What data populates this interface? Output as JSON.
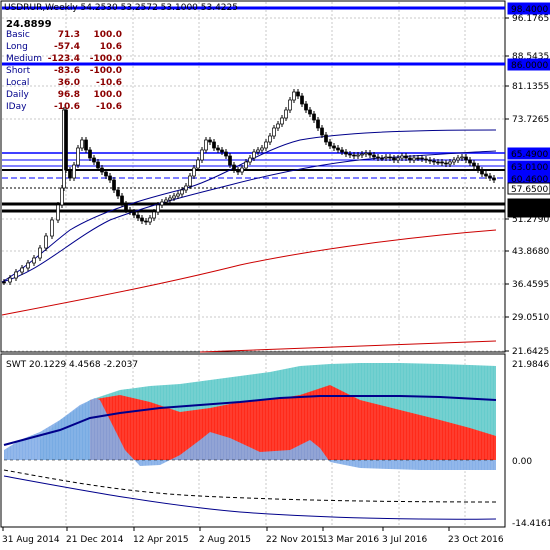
{
  "header": {
    "symbol_line": "USDRUR,Weekly  54.2530 53.2572 53.1000 53.4225",
    "current_value": "24.8899"
  },
  "stats": [
    {
      "label": "Basic",
      "v1": "71.3",
      "v2": "100.0"
    },
    {
      "label": "Long",
      "v1": "-57.4",
      "v2": "10.6"
    },
    {
      "label": "Medium",
      "v1": "-123.4",
      "v2": "-100.0"
    },
    {
      "label": "Short",
      "v1": "-83.6",
      "v2": "-100.0"
    },
    {
      "label": "Local",
      "v1": "36.0",
      "v2": "-10.6"
    },
    {
      "label": "Daily",
      "v1": "96.8",
      "v2": "100.0"
    },
    {
      "label": "IDay",
      "v1": "-10.6",
      "v2": "-10.6"
    }
  ],
  "price_axis": [
    "96.1765",
    "88.5435",
    "81.1355",
    "73.7265",
    "51.2790",
    "43.8680",
    "36.4595",
    "29.0510",
    "21.6425"
  ],
  "price_markers": [
    {
      "text": "98.4000",
      "bg": "#0000ff",
      "fg": "#ffffff"
    },
    {
      "text": "86.0000",
      "bg": "#0000ff",
      "fg": "#ffffff"
    },
    {
      "text": "65.4900",
      "bg": "#0000ff",
      "fg": "#ffffff"
    },
    {
      "text": "63.0100",
      "bg": "#0000ff",
      "fg": "#ffffff"
    },
    {
      "text": "60.4600",
      "bg": "#0000ff",
      "fg": "#ffffff"
    },
    {
      "text": "57.6500",
      "bg": "#ffffff",
      "fg": "#000000"
    },
    {
      "text": "54.1200",
      "bg": "#000000",
      "fg": "#ffffff"
    },
    {
      "text": "53.0500",
      "bg": "#000000",
      "fg": "#ffffff"
    }
  ],
  "indicator": {
    "label": "SWT 20.1229 4.4568 -2.2037",
    "axis": [
      "21.9846",
      "0.00",
      "-14.4161"
    ]
  },
  "time_axis": [
    "31 Aug 2014",
    "21 Dec 2014",
    "12 Apr 2015",
    "2 Aug 2015",
    "22 Nov 2015",
    "13 Mar 2016",
    "3 Jul 2016",
    "23 Oct 2016"
  ],
  "colors": {
    "accent_blue": "#0000ff",
    "navy": "#00008b",
    "red_fill": "#ff0000",
    "teal_fill": "#66cccc",
    "blue_fill": "#7aa7e6",
    "grid": "#c8c8c8"
  }
}
